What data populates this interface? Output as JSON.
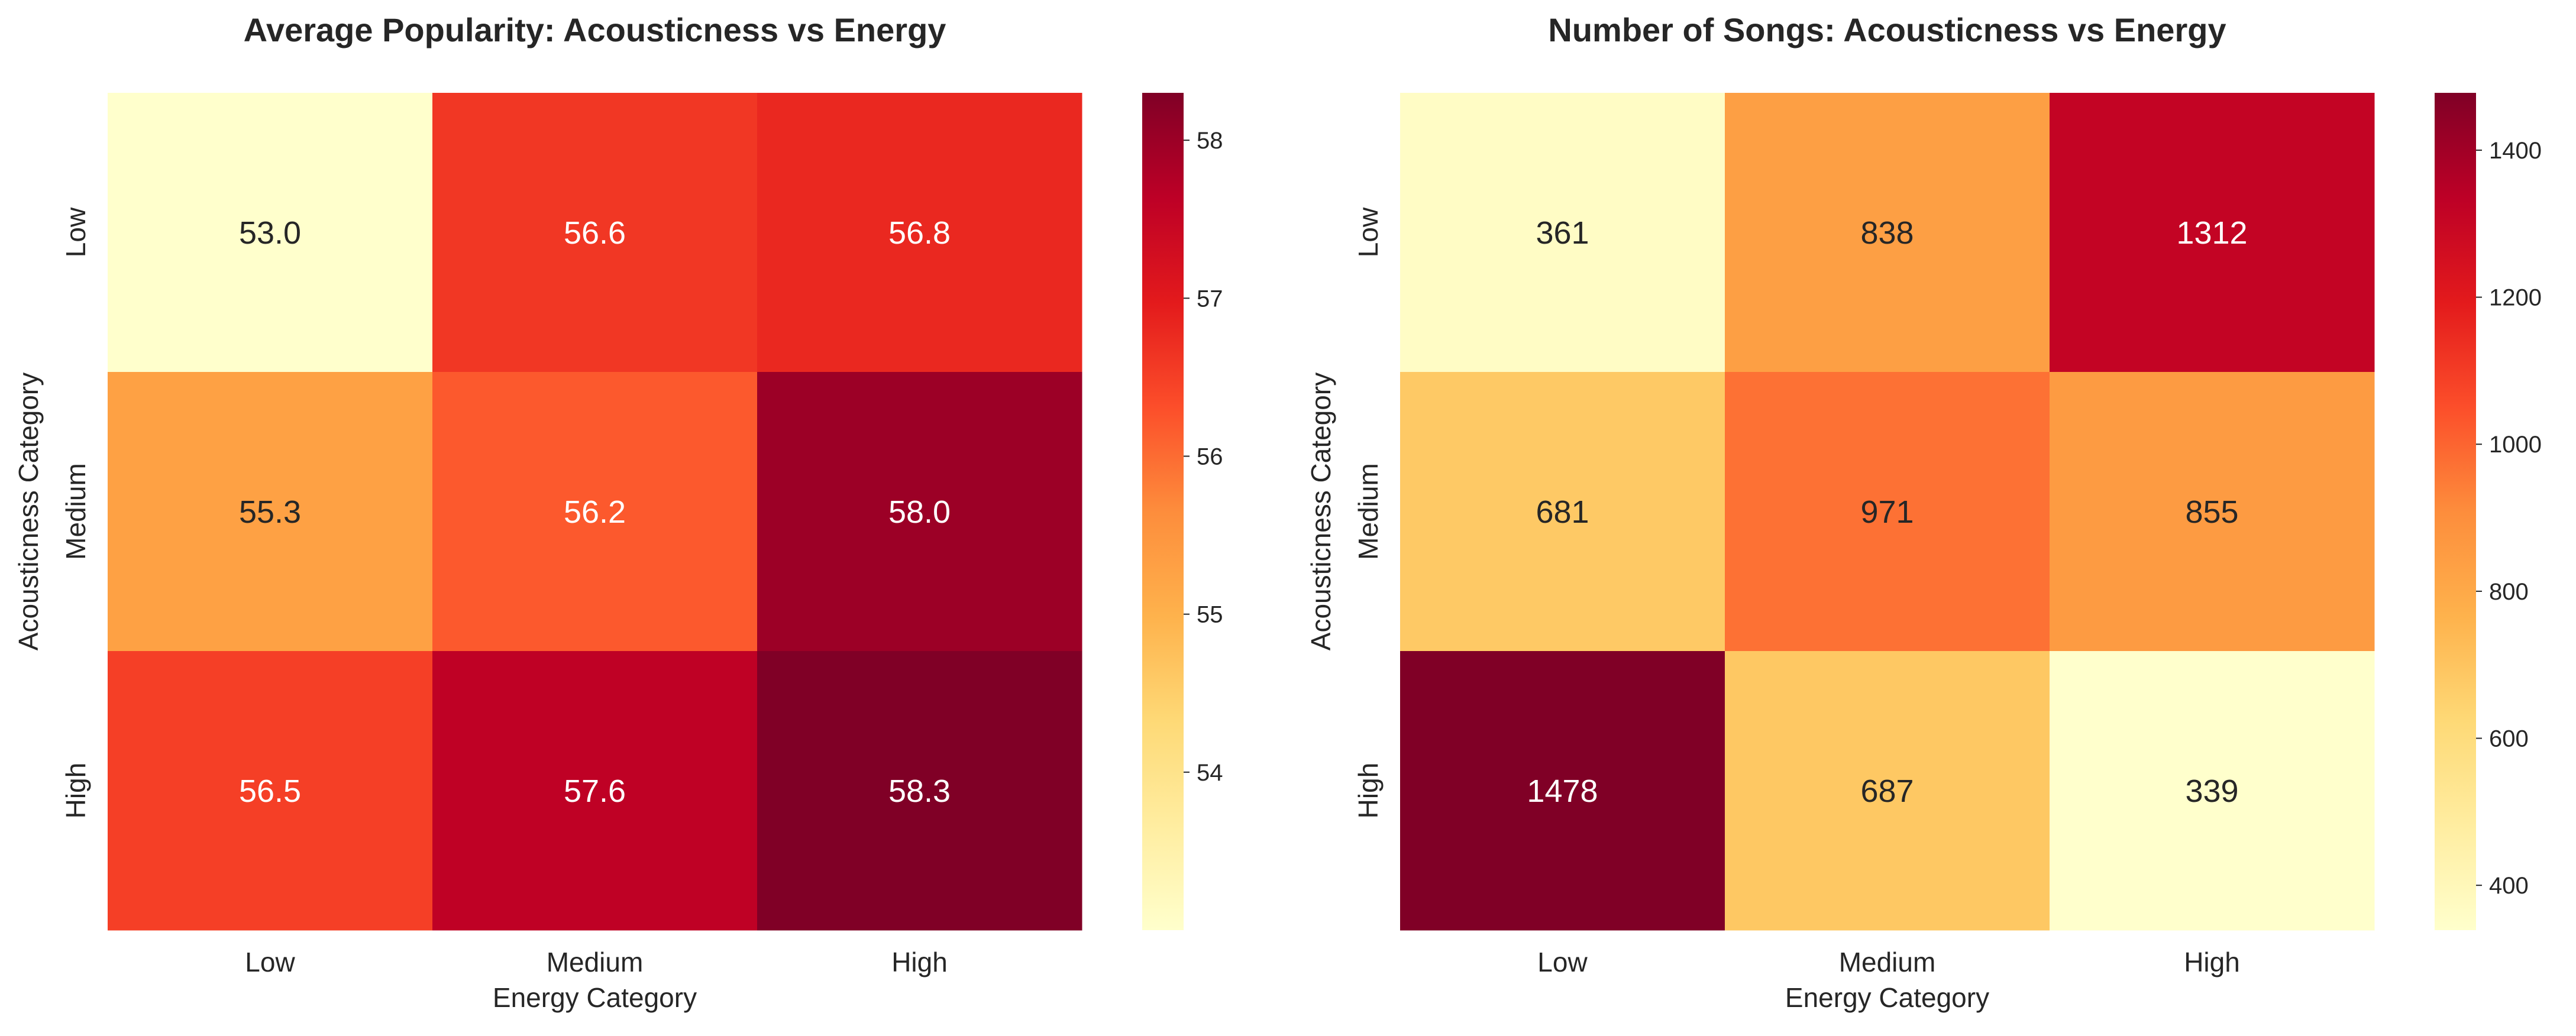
{
  "chart_data": [
    {
      "type": "heatmap",
      "title": "Average Popularity: Acousticness vs Energy",
      "xlabel": "Energy Category",
      "ylabel": "Acousticness Category",
      "x_categories": [
        "Low",
        "Medium",
        "High"
      ],
      "y_categories": [
        "Low",
        "Medium",
        "High"
      ],
      "values": [
        [
          53.0,
          56.6,
          56.8
        ],
        [
          55.3,
          56.2,
          58.0
        ],
        [
          56.5,
          57.6,
          58.3
        ]
      ],
      "value_format": "1f",
      "colormap": "YlOrRd",
      "vmin": 53.0,
      "vmax": 58.3,
      "colorbar_ticks": [
        54,
        55,
        56,
        57,
        58
      ]
    },
    {
      "type": "heatmap",
      "title": "Number of Songs: Acousticness vs Energy",
      "xlabel": "Energy Category",
      "ylabel": "Acousticness Category",
      "x_categories": [
        "Low",
        "Medium",
        "High"
      ],
      "y_categories": [
        "Low",
        "Medium",
        "High"
      ],
      "values": [
        [
          361,
          838,
          1312
        ],
        [
          681,
          971,
          855
        ],
        [
          1478,
          687,
          339
        ]
      ],
      "value_format": "0f",
      "colormap": "YlOrRd",
      "vmin": 339,
      "vmax": 1478,
      "colorbar_ticks": [
        400,
        600,
        800,
        1000,
        1200,
        1400
      ]
    }
  ]
}
